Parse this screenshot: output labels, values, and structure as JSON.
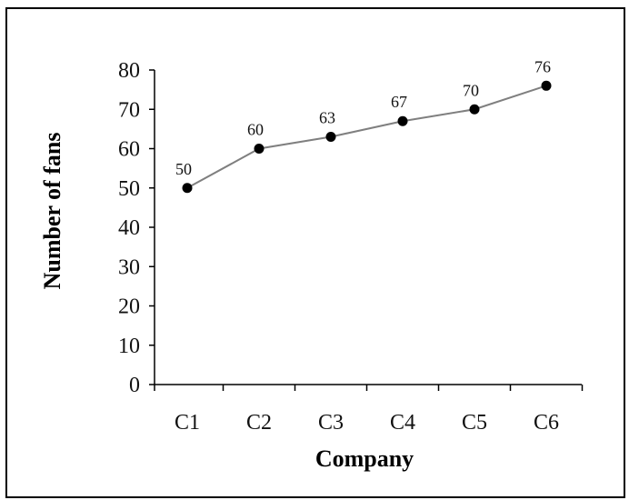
{
  "chart_data": {
    "type": "line",
    "categories": [
      "C1",
      "C2",
      "C3",
      "C4",
      "C5",
      "C6"
    ],
    "values": [
      50,
      60,
      63,
      67,
      70,
      76
    ],
    "data_labels": [
      "50",
      "60",
      "63",
      "67",
      "70",
      "76"
    ],
    "title": "",
    "xlabel": "Company",
    "ylabel": "Number of fans",
    "ylim": [
      0,
      80
    ],
    "yticks": [
      0,
      10,
      20,
      30,
      40,
      50,
      60,
      70,
      80
    ],
    "ytick_labels": [
      "0",
      "10",
      "20",
      "30",
      "40",
      "50",
      "60",
      "70",
      "80"
    ],
    "grid": false,
    "legend": "none",
    "colors": {
      "line": "#7f7f7f",
      "marker": "#000000",
      "axis": "#000000",
      "text": "#111111"
    }
  }
}
